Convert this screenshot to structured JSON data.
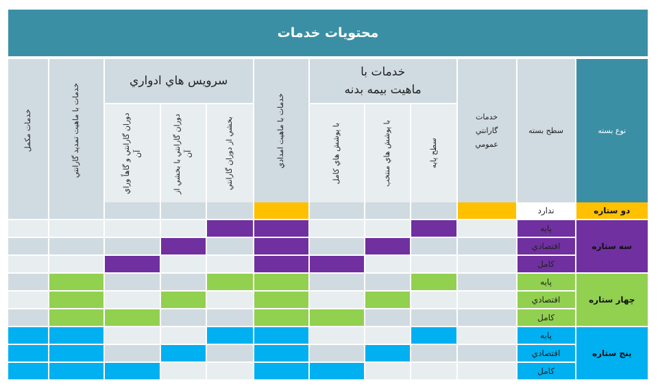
{
  "title": "محتويات خدمات",
  "headers": {
    "package_type": "نوع بسته",
    "package_level": "سطح بسته",
    "general_warranty": "خدمات گارانتي عمومي",
    "body_insurance_group": "خدمات با ماهيت بيمه بدنه",
    "body_basic": "سطح پايه",
    "body_selected": "با پوشش هاي منتخب",
    "body_full": "با پوشش هاي كامل",
    "relief": "خدمات با ماهيت امدادي",
    "periodic_group": "سرويس هاي ادواري",
    "periodic_partial": "بخشي از دوران گارانتي",
    "periodic_with_part": "دوران گارانتي با بخشي از آن",
    "periodic_beyond": "دوران گارانتي و گاهاً وراي آن",
    "extension": "خدمات با ماهيت تمديد گارانتي",
    "complementary": "خدمات مكمل"
  },
  "colors": {
    "header": "#3b8fa5",
    "two_star": "#ffc000",
    "three_star": "#7030a0",
    "four_star": "#92d050",
    "five_star": "#00b0f0",
    "row_dark": "#d0dbe1",
    "row_light": "#e8edf0"
  },
  "tiers": [
    {
      "label": "دو ستاره",
      "color": "#ffc000",
      "levels": [
        {
          "label": "ندارد",
          "cells": [
            1,
            0,
            0,
            0,
            1,
            0,
            0,
            0,
            0,
            0
          ]
        }
      ]
    },
    {
      "label": "سه ستاره",
      "color": "#7030a0",
      "levels": [
        {
          "label": "پايه",
          "cells": [
            0,
            1,
            0,
            0,
            1,
            1,
            0,
            0,
            0,
            0
          ]
        },
        {
          "label": "اقتصادي",
          "cells": [
            0,
            0,
            1,
            0,
            1,
            0,
            1,
            0,
            0,
            0
          ]
        },
        {
          "label": "كامل",
          "cells": [
            0,
            0,
            0,
            1,
            1,
            0,
            0,
            1,
            0,
            0
          ]
        }
      ]
    },
    {
      "label": "چهار ستاره",
      "color": "#92d050",
      "levels": [
        {
          "label": "پايه",
          "cells": [
            0,
            1,
            0,
            0,
            1,
            1,
            0,
            0,
            1,
            0
          ]
        },
        {
          "label": "اقتصادي",
          "cells": [
            0,
            0,
            1,
            0,
            1,
            0,
            1,
            0,
            1,
            0
          ]
        },
        {
          "label": "كامل",
          "cells": [
            0,
            0,
            0,
            1,
            1,
            0,
            0,
            1,
            1,
            0
          ]
        }
      ]
    },
    {
      "label": "پنج ستاره",
      "color": "#00b0f0",
      "levels": [
        {
          "label": "پايه",
          "cells": [
            0,
            1,
            0,
            0,
            1,
            1,
            0,
            0,
            1,
            1
          ]
        },
        {
          "label": "اقتصادي",
          "cells": [
            0,
            0,
            1,
            0,
            1,
            0,
            1,
            0,
            1,
            1
          ]
        },
        {
          "label": "كامل",
          "cells": [
            0,
            0,
            0,
            1,
            1,
            0,
            0,
            1,
            1,
            1
          ]
        }
      ]
    }
  ]
}
